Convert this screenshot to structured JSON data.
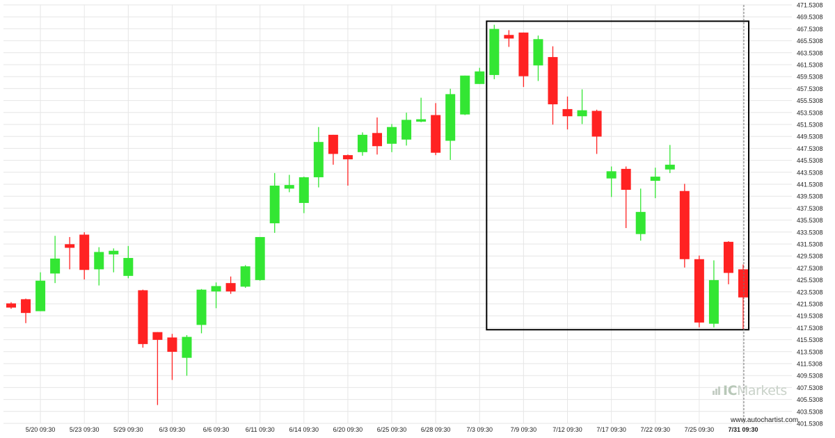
{
  "chart_data": {
    "type": "candlestick",
    "colors": {
      "up": "#33e633",
      "down": "#ff2222",
      "grid": "#e6e6e6",
      "frame": "#000000",
      "text": "#222222"
    },
    "ylim": [
      401.5308,
      471.5308
    ],
    "y_ticks": [
      "471.5308",
      "469.5308",
      "467.5308",
      "465.5308",
      "463.5308",
      "461.5308",
      "459.5308",
      "457.5308",
      "455.5308",
      "453.5308",
      "451.5308",
      "449.5308",
      "447.5308",
      "445.5308",
      "443.5308",
      "441.5308",
      "439.5308",
      "437.5308",
      "435.5308",
      "433.5308",
      "431.5308",
      "429.5308",
      "427.5308",
      "425.5308",
      "423.5308",
      "421.5308",
      "419.5308",
      "417.5308",
      "415.5308",
      "413.5308",
      "411.5308",
      "409.5308",
      "407.5308",
      "405.5308",
      "403.5308",
      "401.5308"
    ],
    "x_ticks": [
      {
        "label": "5/20 09:30",
        "index": 2
      },
      {
        "label": "5/23 09:30",
        "index": 5
      },
      {
        "label": "5/29 09:30",
        "index": 8
      },
      {
        "label": "6/3 09:30",
        "index": 11
      },
      {
        "label": "6/6 09:30",
        "index": 14
      },
      {
        "label": "6/11 09:30",
        "index": 17
      },
      {
        "label": "6/14 09:30",
        "index": 20
      },
      {
        "label": "6/20 09:30",
        "index": 23
      },
      {
        "label": "6/25 09:30",
        "index": 26
      },
      {
        "label": "6/28 09:30",
        "index": 29
      },
      {
        "label": "7/3 09:30",
        "index": 32
      },
      {
        "label": "7/9 09:30",
        "index": 35
      },
      {
        "label": "7/12 09:30",
        "index": 38
      },
      {
        "label": "7/17 09:30",
        "index": 41
      },
      {
        "label": "7/22 09:30",
        "index": 44
      },
      {
        "label": "7/25 09:30",
        "index": 47
      },
      {
        "label": "7/31 09:30",
        "index": 50,
        "bold": true
      }
    ],
    "candles": [
      {
        "o": 421.6,
        "h": 421.8,
        "l": 420.7,
        "c": 420.9
      },
      {
        "o": 422.3,
        "h": 422.4,
        "l": 418.3,
        "c": 420.0
      },
      {
        "o": 420.3,
        "h": 426.8,
        "l": 420.3,
        "c": 425.4
      },
      {
        "o": 426.6,
        "h": 432.9,
        "l": 425.0,
        "c": 429.1
      },
      {
        "o": 431.5,
        "h": 432.7,
        "l": 427.3,
        "c": 430.9
      },
      {
        "o": 433.1,
        "h": 433.5,
        "l": 425.6,
        "c": 427.2
      },
      {
        "o": 427.3,
        "h": 431.0,
        "l": 424.6,
        "c": 430.2
      },
      {
        "o": 429.8,
        "h": 430.8,
        "l": 426.8,
        "c": 430.4
      },
      {
        "o": 426.2,
        "h": 431.2,
        "l": 425.8,
        "c": 429.2
      },
      {
        "o": 423.8,
        "h": 423.9,
        "l": 414.2,
        "c": 414.8
      },
      {
        "o": 416.8,
        "h": 416.8,
        "l": 404.6,
        "c": 415.5
      },
      {
        "o": 415.9,
        "h": 416.5,
        "l": 408.8,
        "c": 413.5
      },
      {
        "o": 412.5,
        "h": 416.3,
        "l": 409.5,
        "c": 416.0
      },
      {
        "o": 418.0,
        "h": 424.0,
        "l": 416.6,
        "c": 423.9
      },
      {
        "o": 423.6,
        "h": 425.1,
        "l": 420.8,
        "c": 424.5
      },
      {
        "o": 425.0,
        "h": 426.1,
        "l": 423.2,
        "c": 423.6
      },
      {
        "o": 424.4,
        "h": 428.0,
        "l": 424.2,
        "c": 427.8
      },
      {
        "o": 425.5,
        "h": 432.7,
        "l": 425.4,
        "c": 432.7
      },
      {
        "o": 435.0,
        "h": 443.4,
        "l": 433.4,
        "c": 441.3
      },
      {
        "o": 440.8,
        "h": 443.1,
        "l": 440.2,
        "c": 441.4
      },
      {
        "o": 438.4,
        "h": 442.8,
        "l": 436.7,
        "c": 442.7
      },
      {
        "o": 442.7,
        "h": 451.1,
        "l": 441.0,
        "c": 448.6
      },
      {
        "o": 449.8,
        "h": 449.8,
        "l": 444.8,
        "c": 446.6
      },
      {
        "o": 446.4,
        "h": 446.5,
        "l": 441.3,
        "c": 445.7
      },
      {
        "o": 446.9,
        "h": 450.2,
        "l": 446.3,
        "c": 449.8
      },
      {
        "o": 450.1,
        "h": 452.7,
        "l": 446.5,
        "c": 447.9
      },
      {
        "o": 448.3,
        "h": 451.6,
        "l": 446.9,
        "c": 451.1
      },
      {
        "o": 449.0,
        "h": 453.5,
        "l": 448.0,
        "c": 452.3
      },
      {
        "o": 452.0,
        "h": 456.0,
        "l": 451.9,
        "c": 452.4
      },
      {
        "o": 453.1,
        "h": 455.1,
        "l": 446.4,
        "c": 446.8
      },
      {
        "o": 448.8,
        "h": 457.5,
        "l": 445.6,
        "c": 456.6
      },
      {
        "o": 453.2,
        "h": 459.7,
        "l": 453.1,
        "c": 459.7
      },
      {
        "o": 458.3,
        "h": 461.0,
        "l": 458.3,
        "c": 460.4
      },
      {
        "o": 459.8,
        "h": 468.2,
        "l": 459.1,
        "c": 467.5
      },
      {
        "o": 466.5,
        "h": 467.3,
        "l": 464.5,
        "c": 465.9
      },
      {
        "o": 466.9,
        "h": 466.9,
        "l": 457.8,
        "c": 459.6
      },
      {
        "o": 461.4,
        "h": 466.4,
        "l": 458.8,
        "c": 465.8
      },
      {
        "o": 462.8,
        "h": 464.6,
        "l": 451.5,
        "c": 454.9
      },
      {
        "o": 454.1,
        "h": 456.2,
        "l": 450.7,
        "c": 452.9
      },
      {
        "o": 452.9,
        "h": 457.4,
        "l": 451.6,
        "c": 453.9
      },
      {
        "o": 453.8,
        "h": 454.0,
        "l": 446.6,
        "c": 449.5
      },
      {
        "o": 442.5,
        "h": 444.5,
        "l": 439.4,
        "c": 443.7
      },
      {
        "o": 444.1,
        "h": 444.5,
        "l": 434.2,
        "c": 440.6
      },
      {
        "o": 433.2,
        "h": 440.8,
        "l": 432.1,
        "c": 436.9
      },
      {
        "o": 442.1,
        "h": 444.3,
        "l": 439.2,
        "c": 442.8
      },
      {
        "o": 444.0,
        "h": 448.1,
        "l": 443.4,
        "c": 444.8
      },
      {
        "o": 440.4,
        "h": 441.6,
        "l": 427.6,
        "c": 429.0
      },
      {
        "o": 429.0,
        "h": 429.6,
        "l": 417.6,
        "c": 418.4
      },
      {
        "o": 418.2,
        "h": 428.8,
        "l": 417.6,
        "c": 425.5
      },
      {
        "o": 431.9,
        "h": 432.0,
        "l": 424.8,
        "c": 426.7
      },
      {
        "o": 427.3,
        "h": 428.1,
        "l": 417.2,
        "c": 422.6
      }
    ],
    "pattern_box": {
      "start_index": 33,
      "end_index": 51,
      "y_top": 468.8,
      "y_bottom": 417.2
    },
    "current_marker_index": 50,
    "grid": true
  },
  "watermark": {
    "ic": "IC",
    "brand": "Markets"
  },
  "credit": "www.autochartist.com"
}
